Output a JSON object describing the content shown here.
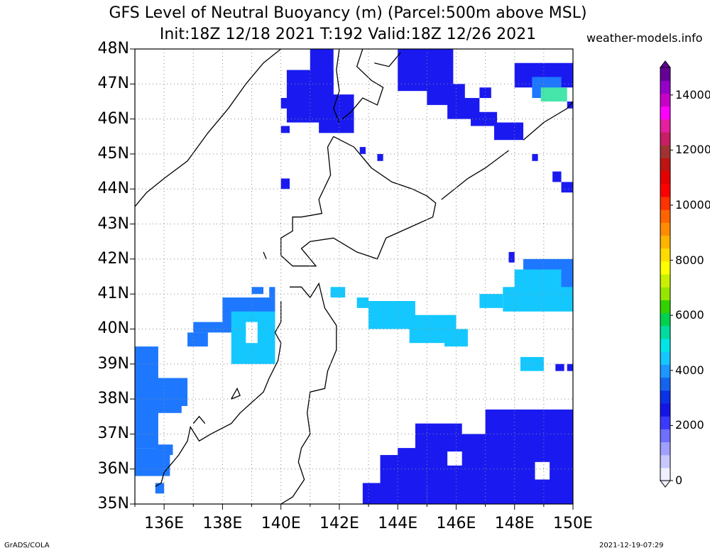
{
  "header": {
    "title_line1": "GFS Level of Neutral Buoyancy (m) (Parcel:500m above MSL)",
    "title_line2": "Init:18Z 12/18 2021 T:192 Valid:18Z 12/26 2021",
    "site": "weather-models.info"
  },
  "footer": {
    "left": "GrADS/COLA",
    "right": "2021-12-19-07:29"
  },
  "axes": {
    "lat_labels": [
      "48N",
      "47N",
      "46N",
      "45N",
      "44N",
      "43N",
      "42N",
      "41N",
      "40N",
      "39N",
      "38N",
      "37N",
      "36N",
      "35N"
    ],
    "lon_labels": [
      "136E",
      "138E",
      "140E",
      "142E",
      "144E",
      "146E",
      "148E",
      "150E"
    ],
    "lon_range": [
      135,
      150
    ],
    "lat_range": [
      35,
      48
    ],
    "grid": "dotted"
  },
  "colorbar": {
    "labels": [
      "0",
      "2000",
      "4000",
      "6000",
      "8000",
      "10000",
      "12000",
      "14000"
    ],
    "range": [
      0,
      15000
    ],
    "colors": [
      "#f0f0ff",
      "#c8c8ff",
      "#a0a0ff",
      "#7070ff",
      "#3a3aff",
      "#1414e6",
      "#0a32e6",
      "#1464f0",
      "#1e96ff",
      "#14c8ff",
      "#00e6e6",
      "#00dca0",
      "#00d250",
      "#32d200",
      "#96e600",
      "#c8f000",
      "#ffff00",
      "#ffdc00",
      "#ffb400",
      "#ff8c00",
      "#ff6400",
      "#ff3200",
      "#ff0000",
      "#e60000",
      "#be1414",
      "#a03232",
      "#c81e64",
      "#e61ea0",
      "#ff00ff",
      "#c800c8",
      "#9600c8",
      "#640096"
    ]
  },
  "map": {
    "field_colors": {
      "low": "#1a1af0",
      "mid": "#1e78ff",
      "high": "#14c8ff",
      "peak": "#46e6aa"
    },
    "coast_color": "#000000"
  }
}
